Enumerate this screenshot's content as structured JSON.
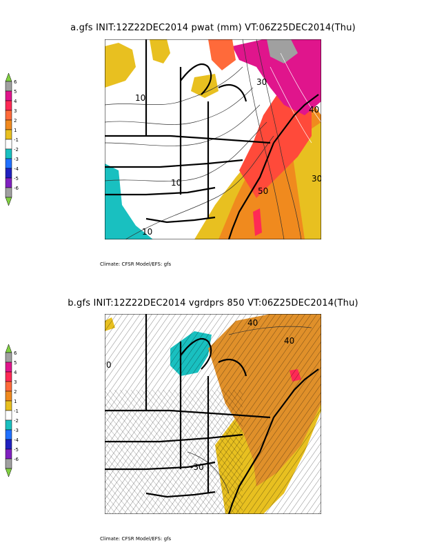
{
  "panels": [
    {
      "id": "a",
      "title": "a.gfs  INIT:12Z22DEC2014  pwat (mm)   VT:06Z25DEC2014(Thu)",
      "credit": "Climate: CFSR Model/EFS: gfs",
      "contour_labels": [
        "10",
        "30",
        "40",
        "10",
        "50",
        "30",
        "10"
      ]
    },
    {
      "id": "b",
      "title": "b.gfs  INIT:12Z22DEC2014  vgrdprs 850  VT:06Z25DEC2014(Thu)",
      "credit": "Climate: CFSR Model/EFS: gfs",
      "contour_labels": [
        "40",
        "40",
        "0",
        "-30"
      ]
    }
  ],
  "legend": {
    "levels": [
      "6",
      "5",
      "4",
      "3",
      "2",
      "1",
      "-1",
      "-2",
      "-3",
      "-4",
      "-5",
      "-6"
    ],
    "colors": [
      "#a0a0a0",
      "#e0158c",
      "#ff2a55",
      "#ff6a3a",
      "#f08a1e",
      "#e8c020",
      "#ffffff",
      "#19c0c0",
      "#2070ff",
      "#2020c0",
      "#8020c0",
      "#a0a0a0"
    ],
    "arrow_color": "#80d040"
  }
}
